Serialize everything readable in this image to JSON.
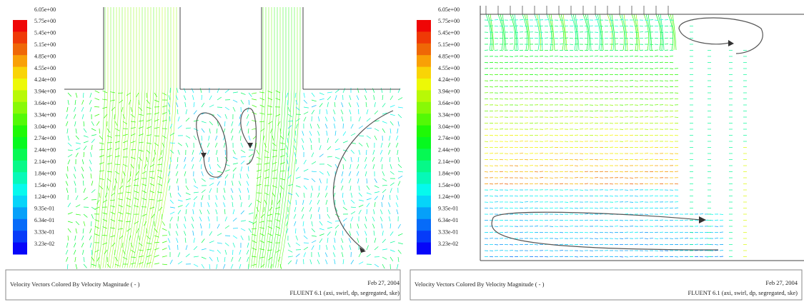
{
  "panels": [
    {
      "colorbar_labels": [
        "6.05e+00",
        "5.75e+00",
        "5.45e+00",
        "5.15e+00",
        "4.85e+00",
        "4.55e+00",
        "4.24e+00",
        "3.94e+00",
        "3.64e+00",
        "3.34e+00",
        "3.04e+00",
        "2.74e+00",
        "2.44e+00",
        "2.14e+00",
        "1.84e+00",
        "1.54e+00",
        "1.24e+00",
        "9.35e-01",
        "6.34e-01",
        "3.33e-01",
        "3.23e-02"
      ],
      "footer": {
        "caption": "Velocity Vectors Colored By Velocity Magnitude  ( - )",
        "date": "Feb 27, 2004",
        "software": "FLUENT 6.1 (axi, swirl, dp, segregated, ske)"
      }
    },
    {
      "colorbar_labels": [
        "6.05e+00",
        "5.75e+00",
        "5.45e+00",
        "5.15e+00",
        "4.85e+00",
        "4.55e+00",
        "4.24e+00",
        "3.94e+00",
        "3.64e+00",
        "3.34e+00",
        "3.04e+00",
        "2.74e+00",
        "2.44e+00",
        "2.14e+00",
        "1.84e+00",
        "1.54e+00",
        "1.24e+00",
        "9.35e-01",
        "6.34e-01",
        "3.33e-01",
        "3.23e-02"
      ],
      "footer": {
        "caption": "Velocity Vectors Colored By Velocity Magnitude  ( - )",
        "date": "Feb 27, 2004",
        "software": "FLUENT 6.1 (axi, swirl, dp, segregated, ske)"
      }
    }
  ]
}
